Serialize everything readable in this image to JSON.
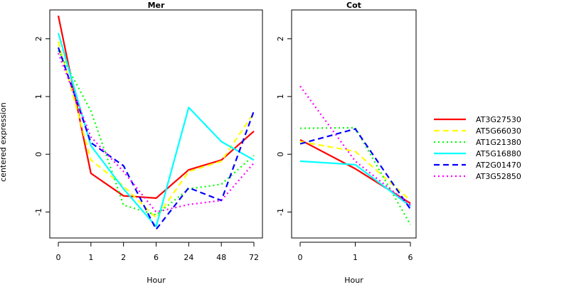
{
  "chart_data": {
    "type": "line",
    "ylabel": "centered expression",
    "xlabel": "Hour",
    "ylim": [
      -1.45,
      2.5
    ],
    "yticks": [
      -1,
      0,
      1,
      2
    ],
    "legend_position": "right",
    "series_styles": [
      {
        "name": "AT3G27530",
        "color": "#ff0000",
        "dash": "solid"
      },
      {
        "name": "AT5G66030",
        "color": "#ffff00",
        "dash": "dashed"
      },
      {
        "name": "AT1G21380",
        "color": "#00ff00",
        "dash": "dotted"
      },
      {
        "name": "AT5G16880",
        "color": "#00ffff",
        "dash": "solid"
      },
      {
        "name": "AT2G01470",
        "color": "#0000ff",
        "dash": "dashed"
      },
      {
        "name": "AT3G52850",
        "color": "#ff00ff",
        "dash": "dotted"
      }
    ],
    "panels": [
      {
        "title": "Mer",
        "categories": [
          "0",
          "1",
          "2",
          "6",
          "24",
          "48",
          "72"
        ],
        "series": [
          {
            "name": "AT3G27530",
            "values": [
              2.4,
              -0.33,
              -0.72,
              -0.76,
              -0.27,
              -0.1,
              0.4
            ]
          },
          {
            "name": "AT5G66030",
            "values": [
              1.95,
              -0.1,
              -0.55,
              -1.1,
              -0.3,
              -0.12,
              0.72
            ]
          },
          {
            "name": "AT1G21380",
            "values": [
              1.8,
              0.75,
              -0.88,
              -1.05,
              -0.6,
              -0.52,
              -0.02
            ]
          },
          {
            "name": "AT5G16880",
            "values": [
              2.1,
              0.15,
              -0.6,
              -1.25,
              0.81,
              0.22,
              -0.1
            ]
          },
          {
            "name": "AT2G01470",
            "values": [
              1.85,
              0.2,
              -0.2,
              -1.3,
              -0.58,
              -0.8,
              0.75
            ]
          },
          {
            "name": "AT3G52850",
            "values": [
              1.75,
              0.3,
              -0.3,
              -1.0,
              -0.87,
              -0.8,
              -0.15
            ]
          }
        ]
      },
      {
        "title": "Cot",
        "categories": [
          "0",
          "1",
          "6"
        ],
        "series": [
          {
            "name": "AT3G27530",
            "values": [
              0.25,
              -0.25,
              -0.85
            ]
          },
          {
            "name": "AT5G66030",
            "values": [
              0.22,
              0.05,
              -0.8
            ]
          },
          {
            "name": "AT1G21380",
            "values": [
              0.45,
              0.46,
              -1.22
            ]
          },
          {
            "name": "AT5G16880",
            "values": [
              -0.12,
              -0.18,
              -0.9
            ]
          },
          {
            "name": "AT2G01470",
            "values": [
              0.18,
              0.44,
              -0.95
            ]
          },
          {
            "name": "AT3G52850",
            "values": [
              1.18,
              -0.12,
              -0.88
            ]
          }
        ]
      }
    ]
  }
}
